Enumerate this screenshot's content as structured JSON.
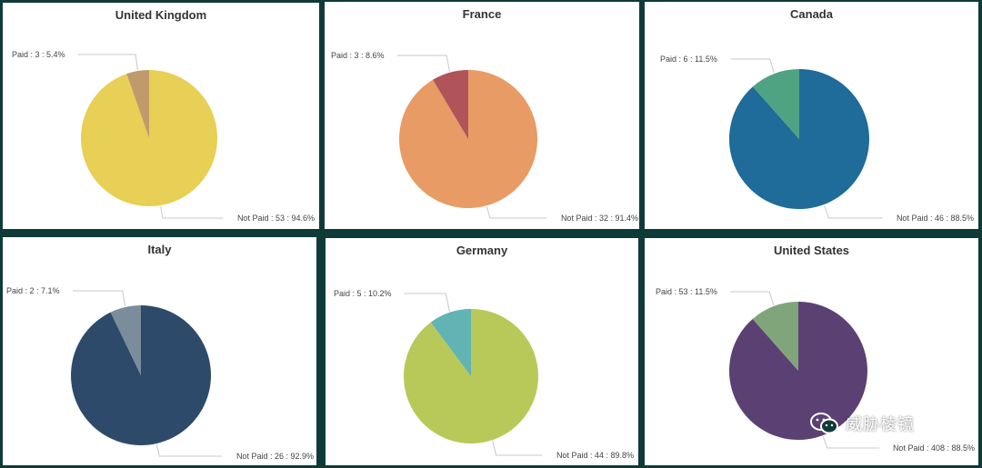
{
  "chart_data": [
    {
      "type": "pie",
      "title": "United Kingdom",
      "slices": [
        {
          "label": "Not Paid",
          "count": 53,
          "percent": "94.6%",
          "color": "#e8cf55"
        },
        {
          "label": "Paid",
          "count": 3,
          "percent": "5.4%",
          "color": "#c19a6b"
        }
      ]
    },
    {
      "type": "pie",
      "title": "France",
      "slices": [
        {
          "label": "Not Paid",
          "count": 32,
          "percent": "91.4%",
          "color": "#e89b64"
        },
        {
          "label": "Paid",
          "count": 3,
          "percent": "8.6%",
          "color": "#b05459"
        }
      ]
    },
    {
      "type": "pie",
      "title": "Canada",
      "slices": [
        {
          "label": "Not Paid",
          "count": 46,
          "percent": "88.5%",
          "color": "#1f6b99"
        },
        {
          "label": "Paid",
          "count": 6,
          "percent": "11.5%",
          "color": "#4fa382"
        }
      ]
    },
    {
      "type": "pie",
      "title": "Italy",
      "slices": [
        {
          "label": "Not Paid",
          "count": 26,
          "percent": "92.9%",
          "color": "#2e4a6b"
        },
        {
          "label": "Paid",
          "count": 2,
          "percent": "7.1%",
          "color": "#7b8c9b"
        }
      ]
    },
    {
      "type": "pie",
      "title": "Germany",
      "slices": [
        {
          "label": "Not Paid",
          "count": 44,
          "percent": "89.8%",
          "color": "#b8c95a"
        },
        {
          "label": "Paid",
          "count": 5,
          "percent": "10.2%",
          "color": "#62b3b3"
        }
      ]
    },
    {
      "type": "pie",
      "title": "United States",
      "slices": [
        {
          "label": "Not Paid",
          "count": 408,
          "percent": "88.5%",
          "color": "#5b4173"
        },
        {
          "label": "Paid",
          "count": 53,
          "percent": "11.5%",
          "color": "#80a57a"
        }
      ]
    }
  ],
  "watermark": {
    "text": "威胁棱镜",
    "icon": "wechat-icon"
  }
}
